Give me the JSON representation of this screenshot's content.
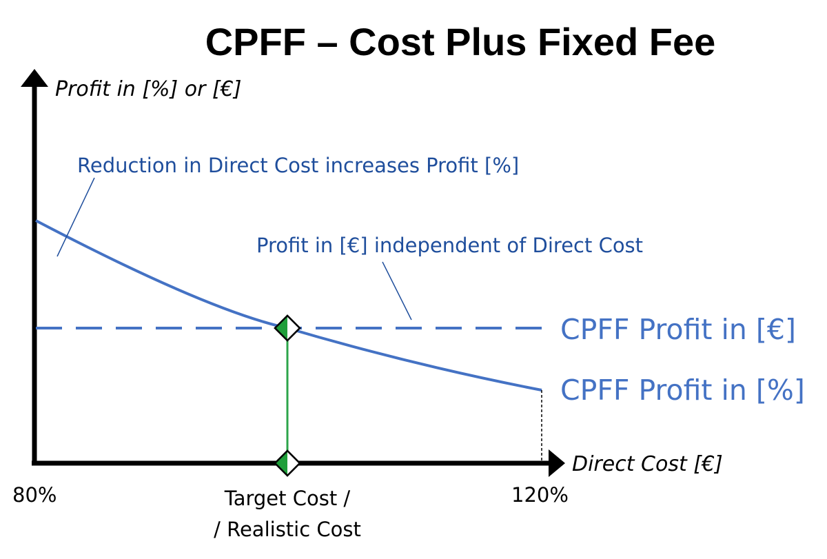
{
  "title": "CPFF – Cost Plus Fixed Fee",
  "y_axis_label": "Profit in [%] or [€]",
  "x_axis_label": "Direct Cost [€]",
  "tick_labels": {
    "left": "80%",
    "right": "120%",
    "target_line1": "Target Cost /",
    "target_line2": "/ Realistic Cost"
  },
  "annotations": {
    "reduction": "Reduction in Direct Cost increases Profit [%]",
    "independent": "Profit in [€] independent of Direct Cost"
  },
  "series_labels": {
    "fixed_fee": "CPFF Profit in [€]",
    "percent": "CPFF Profit in [%]"
  },
  "colors": {
    "annotation_text": "#1f4e9c",
    "series": "#4472c4",
    "target_line": "#2ca54a",
    "marker_fill": "#1f9e3a",
    "axis": "#000000"
  }
}
